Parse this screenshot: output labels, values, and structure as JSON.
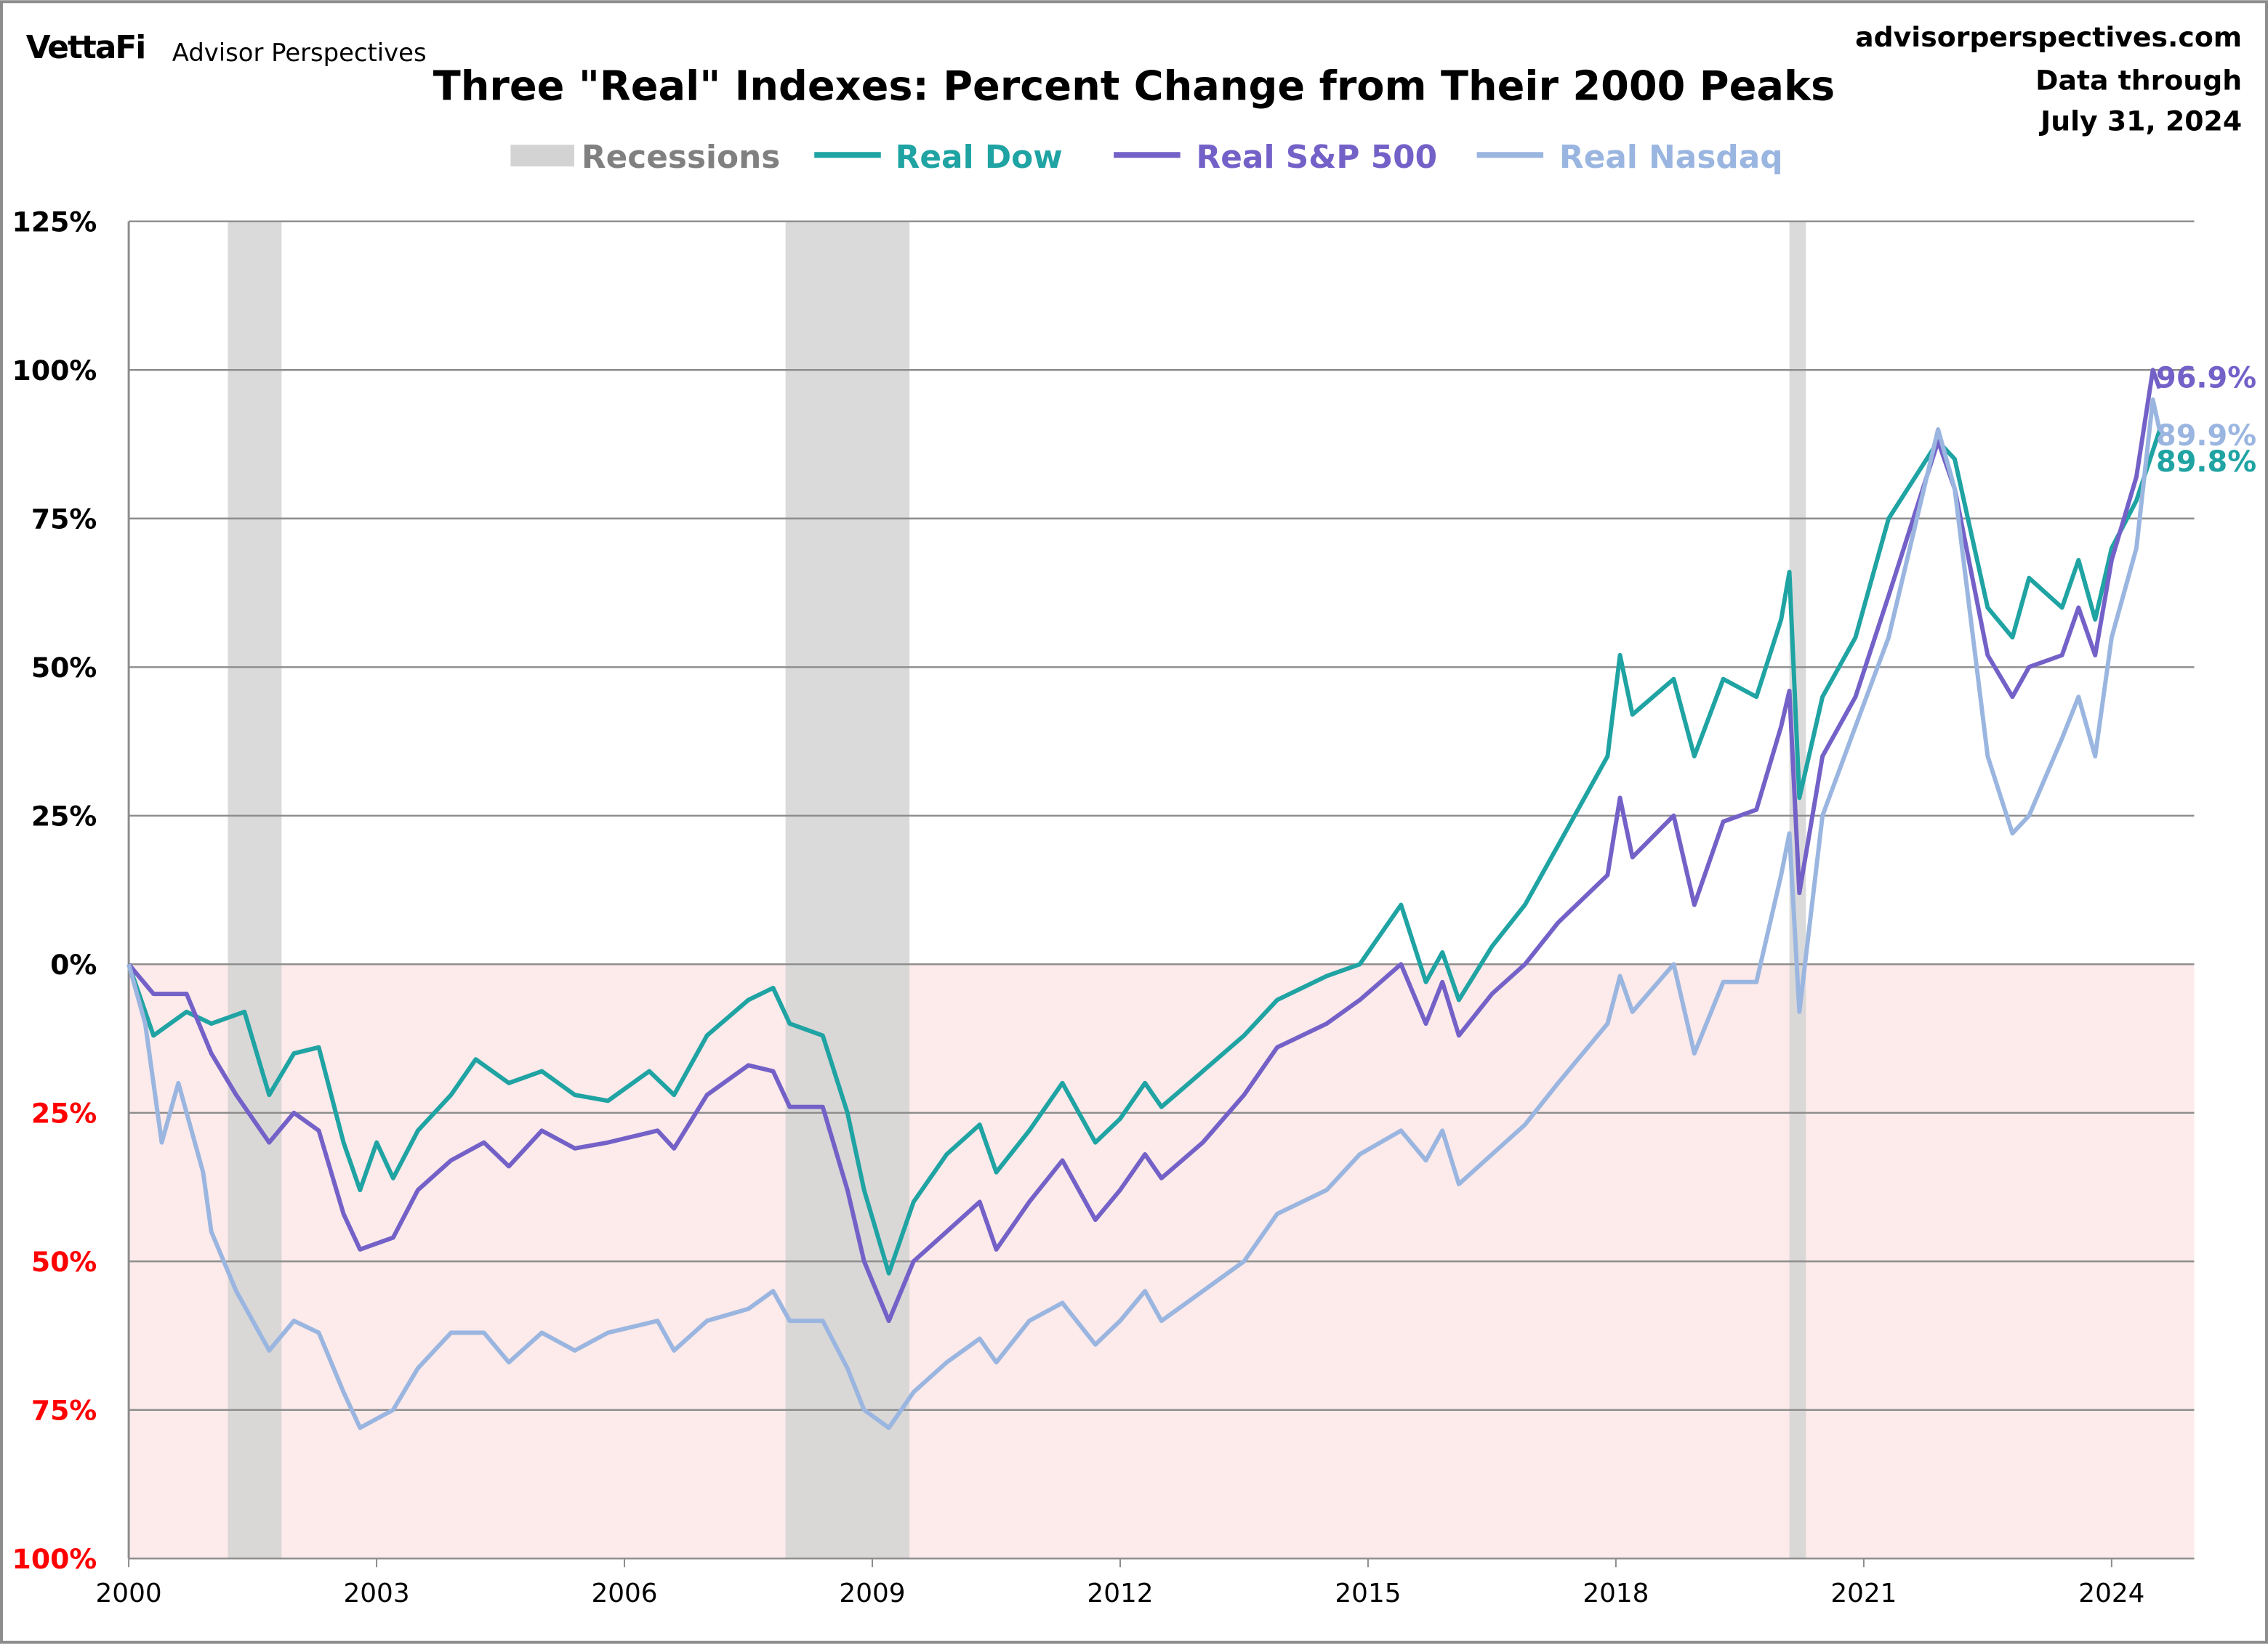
{
  "header": {
    "logo_brand": "VettaFi",
    "logo_sub": "Advisor Perspectives",
    "site": "advisorperspectives.com",
    "data_through_label": "Data through",
    "data_through_date": "July 31, 2024"
  },
  "chart_data": {
    "type": "line",
    "title": "Three \"Real\" Indexes: Percent Change from Their 2000 Peaks",
    "xlabel": "",
    "ylabel": "",
    "xlim": [
      2000,
      2025
    ],
    "ylim": [
      -100,
      125
    ],
    "grid": true,
    "legend_position": "top",
    "x_ticks": [
      "2000",
      "2003",
      "2006",
      "2009",
      "2012",
      "2015",
      "2018",
      "2021",
      "2024"
    ],
    "y_ticks": [
      {
        "value": 125,
        "label": "125%",
        "color": "#000000"
      },
      {
        "value": 100,
        "label": "100%",
        "color": "#000000"
      },
      {
        "value": 75,
        "label": "75%",
        "color": "#000000"
      },
      {
        "value": 50,
        "label": "50%",
        "color": "#000000"
      },
      {
        "value": 25,
        "label": "25%",
        "color": "#000000"
      },
      {
        "value": 0,
        "label": "0%",
        "color": "#000000"
      },
      {
        "value": -25,
        "label": "25%",
        "color": "#ff0000"
      },
      {
        "value": -50,
        "label": "50%",
        "color": "#ff0000"
      },
      {
        "value": -75,
        "label": "75%",
        "color": "#ff0000"
      },
      {
        "value": -100,
        "label": "100%",
        "color": "#ff0000"
      }
    ],
    "negative_region_color": "#fdeaea",
    "recessions": {
      "name": "Recessions",
      "color": "#d3d3d3",
      "periods": [
        [
          2001.2,
          2001.85
        ],
        [
          2007.95,
          2009.45
        ],
        [
          2020.1,
          2020.3
        ]
      ]
    },
    "series": [
      {
        "name": "Real Dow",
        "color": "#1fa3a3",
        "end_label": "89.8%",
        "points": [
          [
            2000.0,
            0
          ],
          [
            2000.3,
            -12
          ],
          [
            2000.7,
            -8
          ],
          [
            2001.0,
            -10
          ],
          [
            2001.4,
            -8
          ],
          [
            2001.7,
            -22
          ],
          [
            2002.0,
            -15
          ],
          [
            2002.3,
            -14
          ],
          [
            2002.6,
            -30
          ],
          [
            2002.8,
            -38
          ],
          [
            2003.0,
            -30
          ],
          [
            2003.2,
            -36
          ],
          [
            2003.5,
            -28
          ],
          [
            2003.9,
            -22
          ],
          [
            2004.2,
            -16
          ],
          [
            2004.6,
            -20
          ],
          [
            2005.0,
            -18
          ],
          [
            2005.4,
            -22
          ],
          [
            2005.8,
            -23
          ],
          [
            2006.3,
            -18
          ],
          [
            2006.6,
            -22
          ],
          [
            2007.0,
            -12
          ],
          [
            2007.5,
            -6
          ],
          [
            2007.8,
            -4
          ],
          [
            2008.0,
            -10
          ],
          [
            2008.4,
            -12
          ],
          [
            2008.7,
            -25
          ],
          [
            2008.9,
            -38
          ],
          [
            2009.2,
            -52
          ],
          [
            2009.5,
            -40
          ],
          [
            2009.9,
            -32
          ],
          [
            2010.3,
            -27
          ],
          [
            2010.5,
            -35
          ],
          [
            2010.9,
            -28
          ],
          [
            2011.3,
            -20
          ],
          [
            2011.7,
            -30
          ],
          [
            2012.0,
            -26
          ],
          [
            2012.3,
            -20
          ],
          [
            2012.5,
            -24
          ],
          [
            2013.0,
            -18
          ],
          [
            2013.5,
            -12
          ],
          [
            2013.9,
            -6
          ],
          [
            2014.5,
            -2
          ],
          [
            2014.9,
            0
          ],
          [
            2015.4,
            10
          ],
          [
            2015.7,
            -3
          ],
          [
            2015.9,
            2
          ],
          [
            2016.1,
            -6
          ],
          [
            2016.5,
            3
          ],
          [
            2016.9,
            10
          ],
          [
            2017.3,
            20
          ],
          [
            2017.9,
            35
          ],
          [
            2018.05,
            52
          ],
          [
            2018.2,
            42
          ],
          [
            2018.7,
            48
          ],
          [
            2018.95,
            35
          ],
          [
            2019.3,
            48
          ],
          [
            2019.7,
            45
          ],
          [
            2020.0,
            58
          ],
          [
            2020.1,
            66
          ],
          [
            2020.22,
            28
          ],
          [
            2020.5,
            45
          ],
          [
            2020.9,
            55
          ],
          [
            2021.3,
            75
          ],
          [
            2021.9,
            88
          ],
          [
            2022.1,
            85
          ],
          [
            2022.5,
            60
          ],
          [
            2022.8,
            55
          ],
          [
            2023.0,
            65
          ],
          [
            2023.4,
            60
          ],
          [
            2023.6,
            68
          ],
          [
            2023.8,
            58
          ],
          [
            2024.0,
            70
          ],
          [
            2024.3,
            78
          ],
          [
            2024.58,
            89.8
          ]
        ]
      },
      {
        "name": "Real S&P 500",
        "color": "#7461c8",
        "end_label": "96.9%",
        "points": [
          [
            2000.0,
            0
          ],
          [
            2000.3,
            -5
          ],
          [
            2000.7,
            -5
          ],
          [
            2001.0,
            -15
          ],
          [
            2001.3,
            -22
          ],
          [
            2001.7,
            -30
          ],
          [
            2002.0,
            -25
          ],
          [
            2002.3,
            -28
          ],
          [
            2002.6,
            -42
          ],
          [
            2002.8,
            -48
          ],
          [
            2003.2,
            -46
          ],
          [
            2003.5,
            -38
          ],
          [
            2003.9,
            -33
          ],
          [
            2004.3,
            -30
          ],
          [
            2004.6,
            -34
          ],
          [
            2005.0,
            -28
          ],
          [
            2005.4,
            -31
          ],
          [
            2005.8,
            -30
          ],
          [
            2006.4,
            -28
          ],
          [
            2006.6,
            -31
          ],
          [
            2007.0,
            -22
          ],
          [
            2007.5,
            -17
          ],
          [
            2007.8,
            -18
          ],
          [
            2008.0,
            -24
          ],
          [
            2008.4,
            -24
          ],
          [
            2008.7,
            -38
          ],
          [
            2008.9,
            -50
          ],
          [
            2009.2,
            -60
          ],
          [
            2009.5,
            -50
          ],
          [
            2009.9,
            -45
          ],
          [
            2010.3,
            -40
          ],
          [
            2010.5,
            -48
          ],
          [
            2010.9,
            -40
          ],
          [
            2011.3,
            -33
          ],
          [
            2011.7,
            -43
          ],
          [
            2012.0,
            -38
          ],
          [
            2012.3,
            -32
          ],
          [
            2012.5,
            -36
          ],
          [
            2013.0,
            -30
          ],
          [
            2013.5,
            -22
          ],
          [
            2013.9,
            -14
          ],
          [
            2014.5,
            -10
          ],
          [
            2014.9,
            -6
          ],
          [
            2015.4,
            0
          ],
          [
            2015.7,
            -10
          ],
          [
            2015.9,
            -3
          ],
          [
            2016.1,
            -12
          ],
          [
            2016.5,
            -5
          ],
          [
            2016.9,
            0
          ],
          [
            2017.3,
            7
          ],
          [
            2017.9,
            15
          ],
          [
            2018.05,
            28
          ],
          [
            2018.2,
            18
          ],
          [
            2018.7,
            25
          ],
          [
            2018.95,
            10
          ],
          [
            2019.3,
            24
          ],
          [
            2019.7,
            26
          ],
          [
            2020.0,
            40
          ],
          [
            2020.1,
            46
          ],
          [
            2020.22,
            12
          ],
          [
            2020.5,
            35
          ],
          [
            2020.9,
            45
          ],
          [
            2021.3,
            62
          ],
          [
            2021.9,
            88
          ],
          [
            2022.1,
            80
          ],
          [
            2022.5,
            52
          ],
          [
            2022.8,
            45
          ],
          [
            2023.0,
            50
          ],
          [
            2023.4,
            52
          ],
          [
            2023.6,
            60
          ],
          [
            2023.8,
            52
          ],
          [
            2024.0,
            68
          ],
          [
            2024.3,
            82
          ],
          [
            2024.5,
            100
          ],
          [
            2024.58,
            96.9
          ]
        ]
      },
      {
        "name": "Real Nasdaq",
        "color": "#9ab6e0",
        "end_label": "89.9%",
        "points": [
          [
            2000.0,
            0
          ],
          [
            2000.2,
            -10
          ],
          [
            2000.4,
            -30
          ],
          [
            2000.6,
            -20
          ],
          [
            2000.9,
            -35
          ],
          [
            2001.0,
            -45
          ],
          [
            2001.3,
            -55
          ],
          [
            2001.7,
            -65
          ],
          [
            2002.0,
            -60
          ],
          [
            2002.3,
            -62
          ],
          [
            2002.6,
            -72
          ],
          [
            2002.8,
            -78
          ],
          [
            2003.2,
            -75
          ],
          [
            2003.5,
            -68
          ],
          [
            2003.9,
            -62
          ],
          [
            2004.3,
            -62
          ],
          [
            2004.6,
            -67
          ],
          [
            2005.0,
            -62
          ],
          [
            2005.4,
            -65
          ],
          [
            2005.8,
            -62
          ],
          [
            2006.4,
            -60
          ],
          [
            2006.6,
            -65
          ],
          [
            2007.0,
            -60
          ],
          [
            2007.5,
            -58
          ],
          [
            2007.8,
            -55
          ],
          [
            2008.0,
            -60
          ],
          [
            2008.4,
            -60
          ],
          [
            2008.7,
            -68
          ],
          [
            2008.9,
            -75
          ],
          [
            2009.2,
            -78
          ],
          [
            2009.5,
            -72
          ],
          [
            2009.9,
            -67
          ],
          [
            2010.3,
            -63
          ],
          [
            2010.5,
            -67
          ],
          [
            2010.9,
            -60
          ],
          [
            2011.3,
            -57
          ],
          [
            2011.7,
            -64
          ],
          [
            2012.0,
            -60
          ],
          [
            2012.3,
            -55
          ],
          [
            2012.5,
            -60
          ],
          [
            2013.0,
            -55
          ],
          [
            2013.5,
            -50
          ],
          [
            2013.9,
            -42
          ],
          [
            2014.5,
            -38
          ],
          [
            2014.9,
            -32
          ],
          [
            2015.4,
            -28
          ],
          [
            2015.7,
            -33
          ],
          [
            2015.9,
            -28
          ],
          [
            2016.1,
            -37
          ],
          [
            2016.5,
            -32
          ],
          [
            2016.9,
            -27
          ],
          [
            2017.3,
            -20
          ],
          [
            2017.9,
            -10
          ],
          [
            2018.05,
            -2
          ],
          [
            2018.2,
            -8
          ],
          [
            2018.7,
            0
          ],
          [
            2018.95,
            -15
          ],
          [
            2019.3,
            -3
          ],
          [
            2019.7,
            -3
          ],
          [
            2020.0,
            15
          ],
          [
            2020.1,
            22
          ],
          [
            2020.22,
            -8
          ],
          [
            2020.5,
            25
          ],
          [
            2020.9,
            40
          ],
          [
            2021.3,
            55
          ],
          [
            2021.9,
            90
          ],
          [
            2022.1,
            80
          ],
          [
            2022.5,
            35
          ],
          [
            2022.8,
            22
          ],
          [
            2023.0,
            25
          ],
          [
            2023.4,
            38
          ],
          [
            2023.6,
            45
          ],
          [
            2023.8,
            35
          ],
          [
            2024.0,
            55
          ],
          [
            2024.3,
            70
          ],
          [
            2024.5,
            95
          ],
          [
            2024.58,
            89.9
          ]
        ]
      }
    ]
  }
}
